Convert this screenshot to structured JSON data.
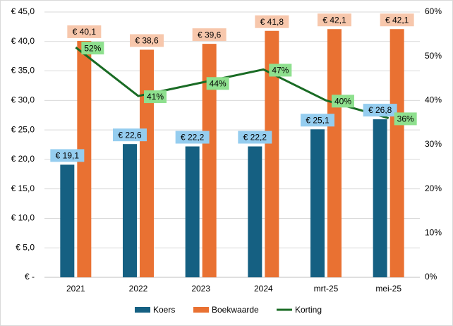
{
  "chart_data": {
    "type": "bar",
    "categories": [
      "2021",
      "2022",
      "2023",
      "2024",
      "mrt-25",
      "mei-25"
    ],
    "series": [
      {
        "name": "Koers",
        "type": "bar",
        "axis": "left",
        "color": "#156082",
        "label_color": "#95cdef",
        "values": [
          19.1,
          22.6,
          22.2,
          22.2,
          25.1,
          26.8
        ],
        "labels": [
          "€ 19,1",
          "€ 22,6",
          "€ 22,2",
          "€ 22,2",
          "€ 25,1",
          "€ 26,8"
        ]
      },
      {
        "name": "Boekwaarde",
        "type": "bar",
        "axis": "left",
        "color": "#e97132",
        "label_color": "#f7c7ac",
        "values": [
          40.1,
          38.6,
          39.6,
          41.8,
          42.1,
          42.1
        ],
        "labels": [
          "€ 40,1",
          "€ 38,6",
          "€ 39,6",
          "€ 41,8",
          "€ 42,1",
          "€ 42,1"
        ]
      },
      {
        "name": "Korting",
        "type": "line",
        "axis": "right",
        "color": "#196b24",
        "label_color": "#8ee08e",
        "values": [
          52,
          41,
          44,
          47,
          40,
          36
        ],
        "labels": [
          "52%",
          "41%",
          "44%",
          "47%",
          "40%",
          "36%"
        ]
      }
    ],
    "y_left": {
      "ylim": [
        0,
        45
      ],
      "ticks": [
        0,
        5,
        10,
        15,
        20,
        25,
        30,
        35,
        40,
        45
      ],
      "tick_labels": [
        "€ -",
        "€ 5,0",
        "€ 10,0",
        "€ 15,0",
        "€ 20,0",
        "€ 25,0",
        "€ 30,0",
        "€ 35,0",
        "€ 40,0",
        "€ 45,0"
      ]
    },
    "y_right": {
      "ylim": [
        0,
        60
      ],
      "ticks": [
        0,
        10,
        20,
        30,
        40,
        50,
        60
      ],
      "tick_labels": [
        "0%",
        "10%",
        "20%",
        "30%",
        "40%",
        "50%",
        "60%"
      ]
    },
    "grid": true,
    "legend": "bottom",
    "title": "",
    "xlabel": "",
    "ylabel": ""
  }
}
